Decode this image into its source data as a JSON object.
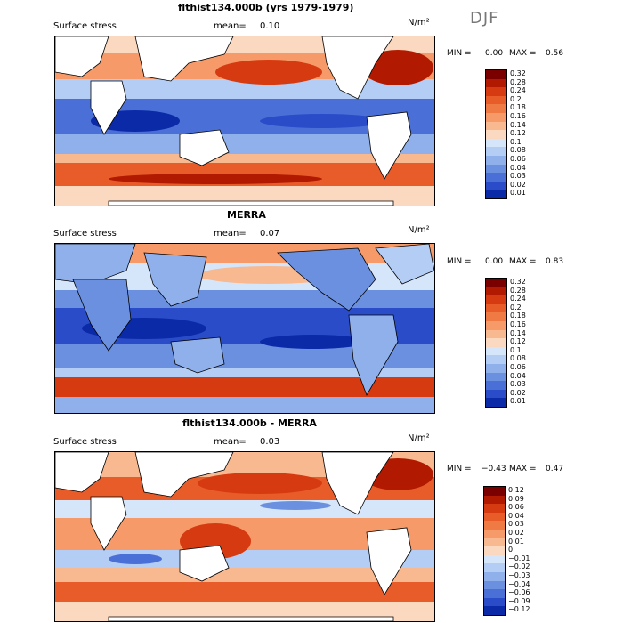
{
  "season": "DJF",
  "units": "N/m²",
  "panels": [
    {
      "title": "flthist134.000b (yrs 1979-1979)",
      "variable": "Surface stress",
      "mean_label": "mean=",
      "mean": "0.10",
      "min_label": "MIN =",
      "min": "0.00",
      "max_label": "MAX =",
      "max": "0.56",
      "levels": [
        "0.32",
        "0.28",
        "0.24",
        "0.2",
        "0.18",
        "0.16",
        "0.14",
        "0.12",
        "0.1",
        "0.08",
        "0.06",
        "0.04",
        "0.03",
        "0.02",
        "0.01"
      ]
    },
    {
      "title": "MERRA",
      "variable": "Surface stress",
      "mean_label": "mean=",
      "mean": "0.07",
      "min_label": "MIN =",
      "min": "0.00",
      "max_label": "MAX =",
      "max": "0.83",
      "levels": [
        "0.32",
        "0.28",
        "0.24",
        "0.2",
        "0.18",
        "0.16",
        "0.14",
        "0.12",
        "0.1",
        "0.08",
        "0.06",
        "0.04",
        "0.03",
        "0.02",
        "0.01"
      ]
    },
    {
      "title": "flthist134.000b - MERRA",
      "variable": "Surface stress",
      "mean_label": "mean=",
      "mean": "0.03",
      "min_label": "MIN =",
      "min": "−0.43",
      "max_label": "MAX =",
      "max": "0.47",
      "levels": [
        "0.12",
        "0.09",
        "0.06",
        "0.04",
        "0.03",
        "0.02",
        "0.01",
        "0",
        "−0.01",
        "−0.02",
        "−0.03",
        "−0.04",
        "−0.06",
        "−0.09",
        "−0.12"
      ]
    }
  ],
  "colors": {
    "abs_scale": [
      "#7a0000",
      "#b11a00",
      "#d63a10",
      "#e85c2a",
      "#f07a44",
      "#f59a68",
      "#f8b890",
      "#fbd8c0",
      "#d6e6fa",
      "#b4cdf4",
      "#90b0ec",
      "#6b90e0",
      "#4a6fd6",
      "#2a4cc8",
      "#0a2aa8"
    ],
    "diff_scale": [
      "#7a0000",
      "#b11a00",
      "#d63a10",
      "#e85c2a",
      "#f07a44",
      "#f59a68",
      "#f8b890",
      "#fbd8c0",
      "#d6e6fa",
      "#b4cdf4",
      "#90b0ec",
      "#6b90e0",
      "#4a6fd6",
      "#2a4cc8",
      "#0a2aa8"
    ],
    "land": "#ffffff",
    "coast": "#000000"
  }
}
